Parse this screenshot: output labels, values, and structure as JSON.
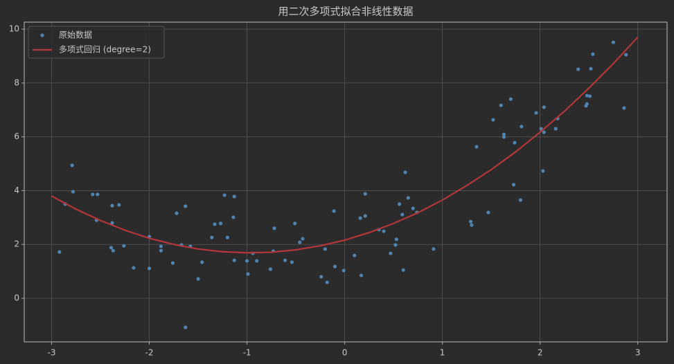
{
  "chart_data": {
    "type": "scatter",
    "title": "用二次多项式拟合非线性数据",
    "xlim": [
      -3.28,
      3.3
    ],
    "ylim": [
      -1.62,
      10.26
    ],
    "xticks": [
      -3,
      -2,
      -1,
      0,
      1,
      2,
      3
    ],
    "yticks": [
      0,
      2,
      4,
      6,
      8,
      10
    ],
    "grid": true,
    "legend": "upper-left",
    "series": [
      {
        "name": "原始数据",
        "type": "scatter",
        "color": "#4f84b0",
        "x": [
          -2.92,
          -2.86,
          -2.79,
          -2.78,
          -2.58,
          -2.53,
          -2.54,
          -2.38,
          -2.38,
          -2.31,
          -2.39,
          -2.37,
          -2.26,
          -2.16,
          -2.0,
          -2.0,
          -1.88,
          -1.88,
          -1.76,
          -1.72,
          -1.67,
          -1.63,
          -1.58,
          -1.63,
          -1.46,
          -1.5,
          -1.36,
          -1.33,
          -1.27,
          -1.23,
          -1.2,
          -1.14,
          -1.13,
          -1.13,
          -1.0,
          -0.99,
          -0.94,
          -0.9,
          -0.76,
          -0.73,
          -0.72,
          -0.61,
          -0.54,
          -0.51,
          -0.46,
          -0.43,
          -0.24,
          -0.18,
          -0.2,
          -0.11,
          -0.1,
          -0.01,
          0.1,
          0.16,
          0.17,
          0.21,
          0.21,
          0.35,
          0.4,
          0.47,
          0.52,
          0.53,
          0.56,
          0.59,
          0.6,
          0.62,
          0.65,
          0.7,
          0.74,
          0.91,
          1.29,
          1.3,
          1.35,
          1.47,
          1.52,
          1.6,
          1.63,
          1.63,
          1.7,
          1.73,
          1.74,
          1.81,
          1.8,
          1.96,
          2.01,
          2.04,
          2.03,
          2.04,
          2.16,
          2.18,
          2.39,
          2.47,
          2.48,
          2.48,
          2.51,
          2.52,
          2.54,
          2.75,
          2.86,
          2.88
        ],
        "values": [
          1.72,
          3.5,
          4.94,
          3.96,
          3.86,
          3.86,
          2.9,
          3.44,
          2.8,
          3.47,
          1.88,
          1.77,
          1.95,
          1.13,
          2.29,
          1.11,
          1.93,
          1.77,
          1.31,
          3.16,
          1.98,
          3.42,
          1.93,
          -1.08,
          1.34,
          0.72,
          2.26,
          2.75,
          2.78,
          3.83,
          2.26,
          3.01,
          3.78,
          1.41,
          1.39,
          0.9,
          1.67,
          1.39,
          1.08,
          1.75,
          2.6,
          1.41,
          1.34,
          2.78,
          2.08,
          2.21,
          0.8,
          0.59,
          1.83,
          3.24,
          1.18,
          1.03,
          1.59,
          2.98,
          0.85,
          3.06,
          3.88,
          2.55,
          2.49,
          1.67,
          1.98,
          2.19,
          3.5,
          3.11,
          1.05,
          4.68,
          3.73,
          3.34,
          3.19,
          1.83,
          2.85,
          2.72,
          5.63,
          3.19,
          6.63,
          7.17,
          6.09,
          5.99,
          7.4,
          4.22,
          5.78,
          6.38,
          3.65,
          6.89,
          6.3,
          7.1,
          4.73,
          6.17,
          6.3,
          6.68,
          8.51,
          7.15,
          7.22,
          7.53,
          7.51,
          8.53,
          9.07,
          9.51,
          7.07,
          9.05
        ]
      },
      {
        "name": "多项式回归 (degree=2)",
        "type": "line",
        "color": "#b5363a",
        "x": [
          -3,
          -2.75,
          -2.5,
          -2.25,
          -2,
          -1.75,
          -1.5,
          -1.25,
          -1,
          -0.75,
          -0.5,
          -0.25,
          0,
          0.25,
          0.5,
          0.75,
          1,
          1.25,
          1.5,
          1.75,
          2,
          2.25,
          2.5,
          2.75,
          3
        ],
        "values": [
          3.8,
          3.31,
          2.89,
          2.53,
          2.23,
          2.0,
          1.83,
          1.73,
          1.69,
          1.71,
          1.8,
          1.95,
          2.16,
          2.44,
          2.78,
          3.18,
          3.65,
          4.19,
          4.78,
          5.44,
          6.17,
          6.95,
          7.81,
          8.72,
          9.7
        ]
      }
    ]
  }
}
